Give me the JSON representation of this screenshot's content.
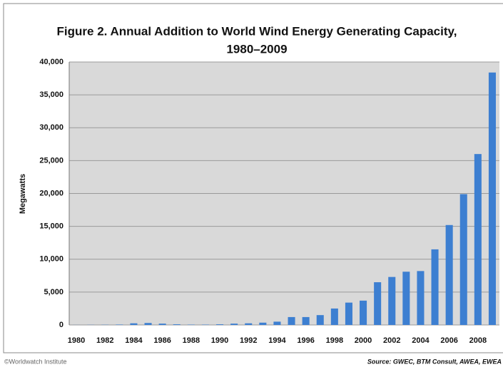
{
  "chart_data": {
    "type": "bar",
    "title": [
      "Figure 2. Annual Addition to World Wind Energy Generating Capacity,",
      "1980–2009"
    ],
    "y_label": "Megawatts",
    "credit": "©Worldwatch Institute",
    "source": "Source: GWEC, BTM Consult, AWEA, EWEA",
    "categories": [
      "1980",
      null,
      "1982",
      null,
      "1984",
      null,
      "1986",
      null,
      "1988",
      null,
      "1990",
      null,
      "1992",
      null,
      "1994",
      null,
      "1996",
      null,
      "1998",
      null,
      "2000",
      null,
      "2002",
      null,
      "2004",
      null,
      "2006",
      null,
      "2008",
      null
    ],
    "values": [
      10,
      20,
      30,
      60,
      250,
      300,
      200,
      100,
      50,
      50,
      100,
      200,
      250,
      350,
      500,
      1200,
      1200,
      1500,
      2500,
      3400,
      3700,
      6500,
      7300,
      8100,
      8200,
      11500,
      15200,
      19900,
      26000,
      38400
    ],
    "color": "#3d7fd1",
    "ylim": [
      0,
      40000
    ],
    "yticks": [
      0,
      {
        "value": 5000,
        "label": "5,000"
      },
      {
        "value": 10000,
        "label": "10,000"
      },
      {
        "value": 15000,
        "label": "15,000"
      },
      {
        "value": 20000,
        "label": "20,000"
      },
      {
        "value": 25000,
        "label": "25,000"
      },
      {
        "value": 30000,
        "label": "30,000"
      },
      {
        "value": 35000,
        "label": "35,000"
      },
      {
        "value": 40000,
        "label": "40,000"
      }
    ],
    "grid": true
  }
}
